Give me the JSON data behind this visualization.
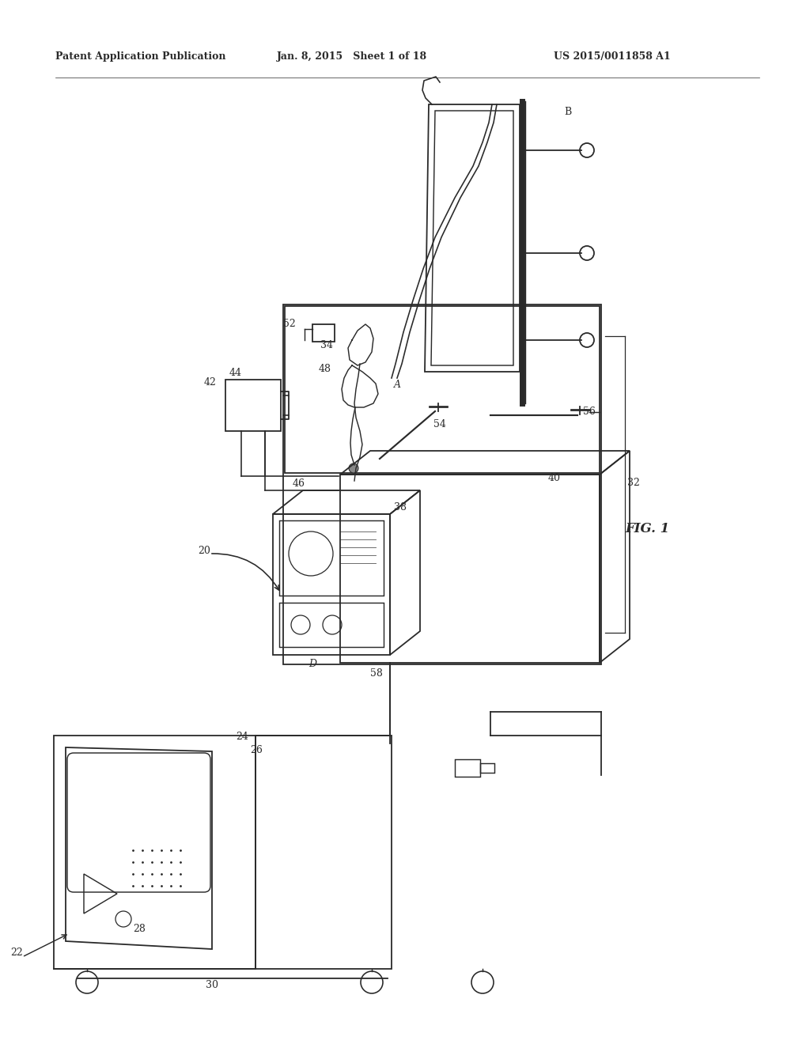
{
  "background_color": "#ffffff",
  "header_left": "Patent Application Publication",
  "header_center": "Jan. 8, 2015   Sheet 1 of 18",
  "header_right": "US 2015/0011858 A1",
  "line_color": "#2a2a2a",
  "fig_label": "FIG. 1"
}
